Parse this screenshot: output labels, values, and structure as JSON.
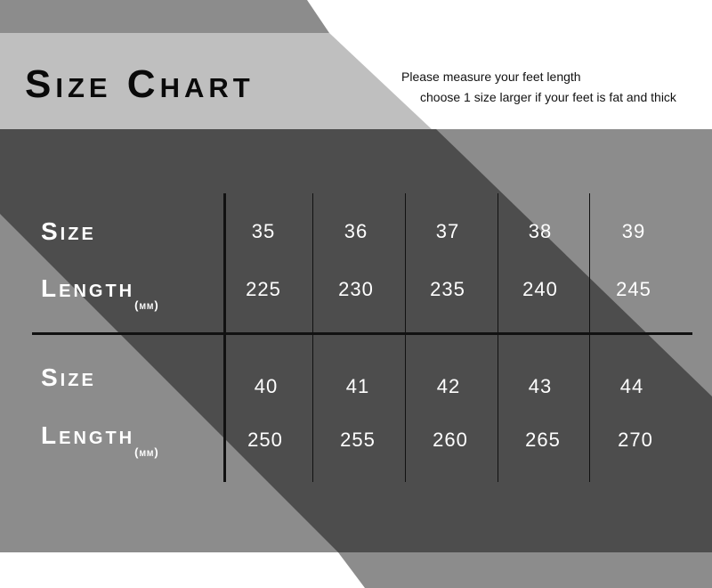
{
  "title": "Size Chart",
  "notes": [
    "Please measure your feet length",
    "choose 1 size larger if your feet is fat and thick"
  ],
  "row_labels": {
    "size": "Size",
    "length": "Length",
    "unit": "(mm)"
  },
  "table": [
    {
      "sizes": [
        "35",
        "36",
        "37",
        "38",
        "39"
      ],
      "lengths": [
        "225",
        "230",
        "235",
        "240",
        "245"
      ]
    },
    {
      "sizes": [
        "40",
        "41",
        "42",
        "43",
        "44"
      ],
      "lengths": [
        "250",
        "255",
        "260",
        "265",
        "270"
      ]
    }
  ],
  "colors": {
    "dark": "#4d4d4d",
    "mid": "#8c8c8c",
    "light": "#bfbfbf",
    "white": "#ffffff"
  }
}
